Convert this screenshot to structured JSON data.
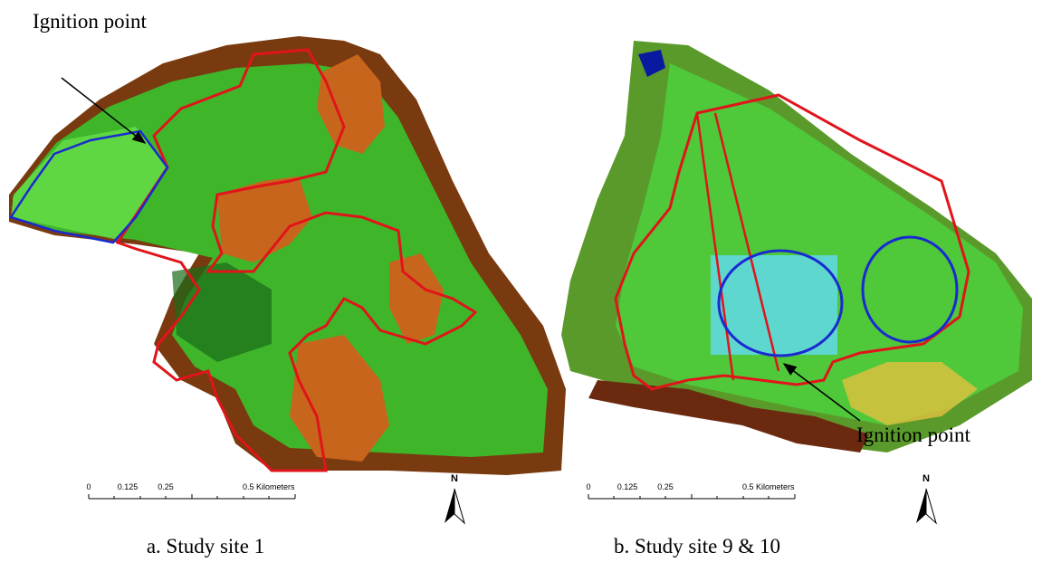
{
  "panels": [
    {
      "caption": "a. Study site 1",
      "ignition_label": "Ignition point",
      "scale_labels": [
        "0",
        "0.125",
        "0.25",
        "0.5 Kilometers"
      ],
      "north": "N"
    },
    {
      "caption": "b. Study site 9 & 10",
      "ignition_label": "Ignition point",
      "scale_labels": [
        "0",
        "0.125",
        "0.25",
        "0.5 Kilometers"
      ],
      "north": "N"
    }
  ]
}
